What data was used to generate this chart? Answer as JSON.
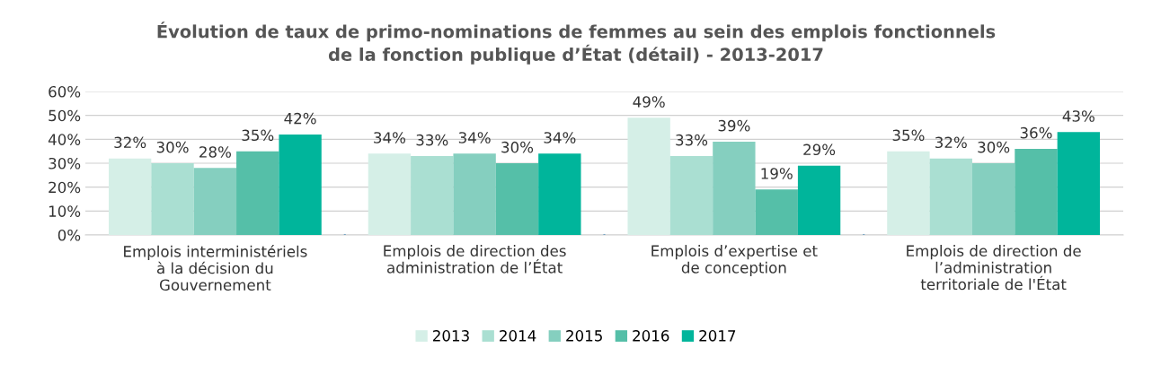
{
  "chart_data": {
    "type": "bar",
    "title": "Évolution de taux de primo-nominations de femmes au sein des emplois fonctionnels\nde la fonction publique d’État (détail) - 2013-2017",
    "categories": [
      "Emplois interministériels\nà la décision du\nGouvernement",
      "Emplois de direction des\nadministration de l’État",
      "Emplois d’expertise et\nde conception",
      "Emplois de direction de\nl’administration\nterritoriale de l'État"
    ],
    "series": [
      {
        "name": "2013",
        "color": "#d5efe7",
        "values": [
          32,
          34,
          49,
          35
        ],
        "value_labels": [
          "32%",
          "34%",
          "49%",
          "35%"
        ]
      },
      {
        "name": "2014",
        "color": "#aadfd2",
        "values": [
          30,
          33,
          33,
          32
        ],
        "value_labels": [
          "30%",
          "33%",
          "33%",
          "32%"
        ]
      },
      {
        "name": "2015",
        "color": "#85cfbf",
        "values": [
          28,
          34,
          39,
          30
        ],
        "value_labels": [
          "28%",
          "34%",
          "39%",
          "30%"
        ]
      },
      {
        "name": "2016",
        "color": "#55bfa8",
        "values": [
          35,
          30,
          19,
          36
        ],
        "value_labels": [
          "35%",
          "30%",
          "19%",
          "36%"
        ]
      },
      {
        "name": "2017",
        "color": "#00b59b",
        "values": [
          42,
          34,
          29,
          43
        ],
        "value_labels": [
          "42%",
          "34%",
          "29%",
          "43%"
        ]
      }
    ],
    "ylim": [
      0,
      60
    ],
    "yticks": [
      {
        "value": 0,
        "label": "0%"
      },
      {
        "value": 10,
        "label": "10%"
      },
      {
        "value": 20,
        "label": "20%"
      },
      {
        "value": 30,
        "label": "30%"
      },
      {
        "value": 40,
        "label": "40%"
      },
      {
        "value": 50,
        "label": "50%"
      },
      {
        "value": 60,
        "label": "60%"
      }
    ],
    "grid": "y",
    "legend": "bottom"
  }
}
